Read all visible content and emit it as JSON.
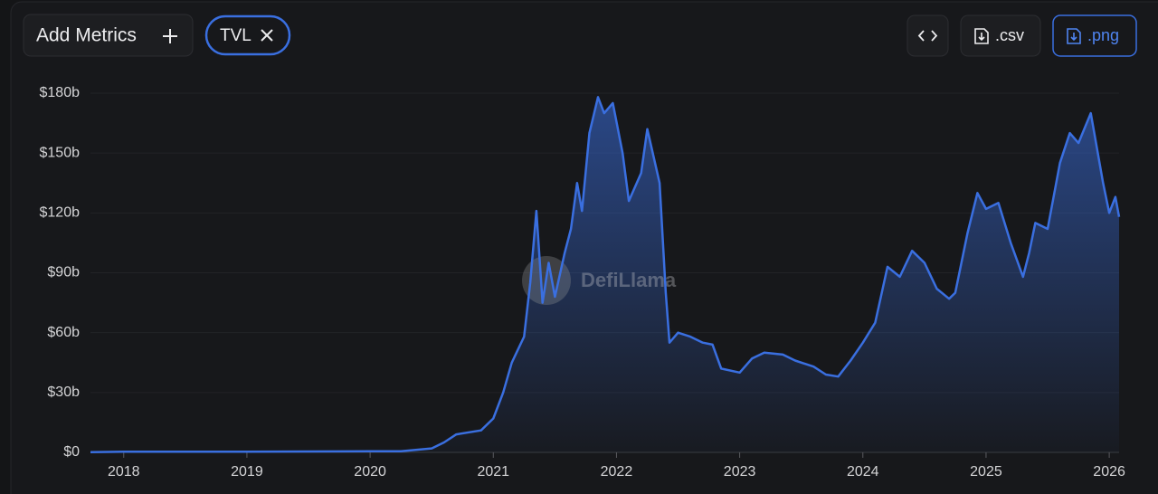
{
  "toolbar": {
    "add_metrics": "Add Metrics",
    "csv": ".csv",
    "png": ".png"
  },
  "chart_data": {
    "type": "area",
    "watermark": "DefiLlama",
    "x": [
      2017.73,
      2018.0,
      2019.0,
      2020.0,
      2020.25,
      2020.5,
      2020.6,
      2020.7,
      2020.9,
      2021.0,
      2021.08,
      2021.15,
      2021.25,
      2021.3,
      2021.35,
      2021.4,
      2021.45,
      2021.5,
      2021.58,
      2021.63,
      2021.68,
      2021.72,
      2021.78,
      2021.85,
      2021.9,
      2021.97,
      2022.05,
      2022.1,
      2022.2,
      2022.25,
      2022.35,
      2022.4,
      2022.43,
      2022.5,
      2022.6,
      2022.7,
      2022.78,
      2022.85,
      2023.0,
      2023.1,
      2023.2,
      2023.35,
      2023.45,
      2023.6,
      2023.7,
      2023.8,
      2023.9,
      2024.0,
      2024.1,
      2024.2,
      2024.3,
      2024.4,
      2024.5,
      2024.6,
      2024.7,
      2024.75,
      2024.85,
      2024.93,
      2025.0,
      2025.1,
      2025.2,
      2025.3,
      2025.35,
      2025.4,
      2025.5,
      2025.6,
      2025.68,
      2025.75,
      2025.85,
      2025.95,
      2026.0,
      2026.05,
      2026.08
    ],
    "series": [
      {
        "name": "TVL",
        "color": "#3a6fe0",
        "values": [
          0.1,
          0.3,
          0.3,
          0.6,
          0.6,
          2,
          5,
          9,
          11,
          17,
          30,
          45,
          58,
          85,
          121,
          75,
          95,
          78,
          100,
          112,
          135,
          121,
          160,
          178,
          170,
          175,
          150,
          126,
          140,
          162,
          135,
          80,
          55,
          60,
          58,
          55,
          54,
          42,
          40,
          47,
          50,
          49,
          46,
          43,
          39,
          38,
          46,
          55,
          65,
          93,
          88,
          101,
          95,
          82,
          77,
          80,
          110,
          130,
          122,
          125,
          105,
          88,
          100,
          115,
          112,
          145,
          160,
          155,
          170,
          135,
          120,
          128,
          118
        ]
      }
    ],
    "xlim": [
      2017.73,
      2026.08
    ],
    "xticks": [
      2018,
      2019,
      2020,
      2021,
      2022,
      2023,
      2024,
      2025,
      2026
    ],
    "ylim": [
      0,
      180
    ],
    "yticks": [
      {
        "value": 0,
        "label": "$0"
      },
      {
        "value": 30,
        "label": "$30b"
      },
      {
        "value": 60,
        "label": "$60b"
      },
      {
        "value": 90,
        "label": "$90b"
      },
      {
        "value": 120,
        "label": "$120b"
      },
      {
        "value": 150,
        "label": "$150b"
      },
      {
        "value": 180,
        "label": "$180b"
      }
    ],
    "grid": true
  }
}
